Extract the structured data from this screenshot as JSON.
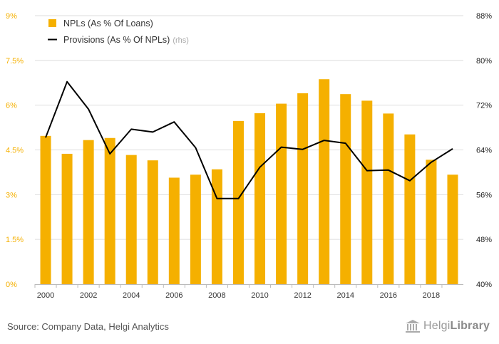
{
  "chart_data": {
    "type": "bar+line",
    "categories": [
      "2000",
      "2001",
      "2002",
      "2003",
      "2004",
      "2005",
      "2006",
      "2007",
      "2008",
      "2009",
      "2010",
      "2011",
      "2012",
      "2013",
      "2014",
      "2015",
      "2016",
      "2017",
      "2018",
      "2019"
    ],
    "x_tick_labels": [
      "2000",
      "2002",
      "2004",
      "2006",
      "2008",
      "2010",
      "2012",
      "2014",
      "2016",
      "2018"
    ],
    "series": [
      {
        "name": "NPLs (As % Of Loans)",
        "type": "bar",
        "axis": "left",
        "color": "#f5b000",
        "values": [
          4.97,
          4.37,
          4.83,
          4.9,
          4.33,
          4.15,
          3.57,
          3.67,
          3.85,
          5.47,
          5.73,
          6.05,
          6.4,
          6.87,
          6.37,
          6.15,
          5.72,
          5.02,
          4.17,
          3.67
        ]
      },
      {
        "name": "Provisions (As % Of NPLs)",
        "legend_suffix": "(rhs)",
        "type": "line",
        "axis": "right",
        "color": "#000000",
        "values": [
          66.2,
          76.2,
          71.3,
          63.3,
          67.7,
          67.2,
          69.0,
          64.4,
          55.3,
          55.3,
          60.9,
          64.5,
          64.1,
          65.7,
          65.2,
          60.3,
          60.4,
          58.5,
          61.8,
          64.2
        ]
      }
    ],
    "y_left": {
      "ticks": [
        "0%",
        "1.5%",
        "3%",
        "4.5%",
        "6%",
        "7.5%",
        "9%"
      ],
      "ylim": [
        0,
        9
      ]
    },
    "y_right": {
      "ticks": [
        "40%",
        "48%",
        "56%",
        "64%",
        "72%",
        "80%",
        "88%"
      ],
      "ylim": [
        40,
        88
      ]
    },
    "grid": true,
    "legend_position": "top-left"
  },
  "footer": {
    "source": "Source: Company Data, Helgi Analytics",
    "brand_light": "Helgi",
    "brand_bold": "Library"
  },
  "colors": {
    "bar": "#f5b000",
    "line": "#000000",
    "left_axis_text": "#f5b000",
    "right_axis_text": "#222222",
    "grid": "#dddddd"
  }
}
